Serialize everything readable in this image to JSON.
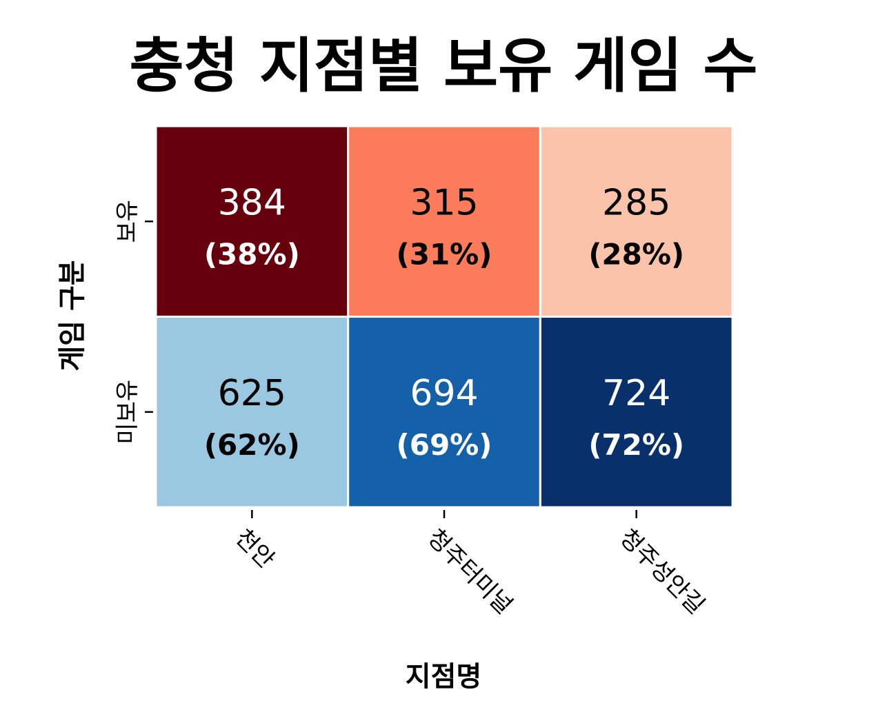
{
  "chart_data": {
    "type": "heatmap",
    "title": "충청 지점별 보유 게임 수",
    "xlabel": "지점명",
    "ylabel": "게임 구분",
    "x_categories": [
      "천안",
      "청주터미널",
      "청주성안길"
    ],
    "y_categories": [
      "보유",
      "미보유"
    ],
    "values": [
      [
        384,
        315,
        285
      ],
      [
        625,
        694,
        724
      ]
    ],
    "percent_labels": [
      [
        "(38%)",
        "(31%)",
        "(28%)"
      ],
      [
        "(62%)",
        "(69%)",
        "(72%)"
      ]
    ],
    "cell_colors": [
      [
        "#67000d",
        "#fb7b5b",
        "#fbc3a9"
      ],
      [
        "#9ac8e0",
        "#1561a9",
        "#08306b"
      ]
    ],
    "text_colors": [
      [
        "#ffffff",
        "#000000",
        "#000000"
      ],
      [
        "#000000",
        "#ffffff",
        "#ffffff"
      ]
    ],
    "grid": false,
    "colorbar": false
  }
}
